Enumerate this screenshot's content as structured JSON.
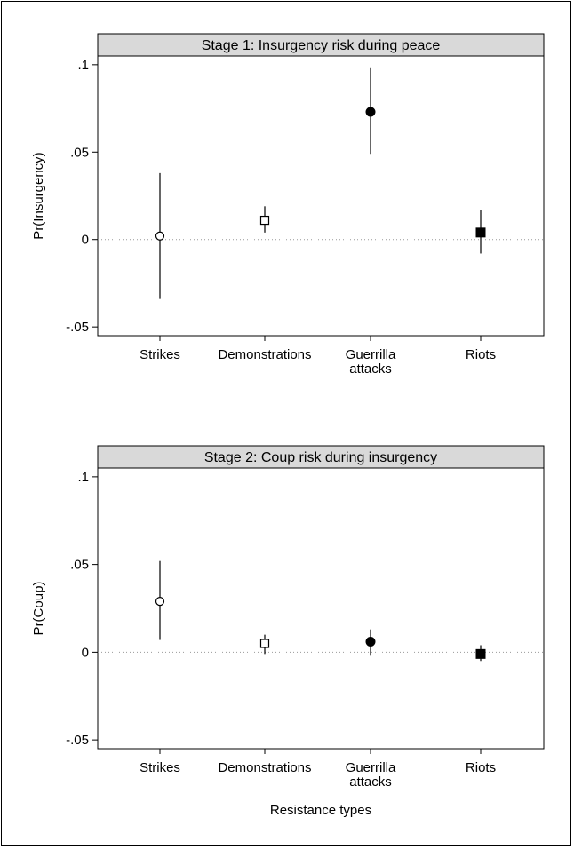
{
  "xlabel": "Resistance types",
  "chart_data": [
    {
      "type": "scatter",
      "title": "Stage 1: Insurgency risk during peace",
      "ylabel": "Pr(Insurgency)",
      "ylim": [
        -0.055,
        0.105
      ],
      "yticks": [
        ".1",
        ".05",
        "0",
        "-.05"
      ],
      "yticks_values": [
        0.1,
        0.05,
        0,
        -0.05
      ],
      "categories": [
        [
          "Strikes"
        ],
        [
          "Demonstrations"
        ],
        [
          "Guerrilla",
          "attacks"
        ],
        [
          "Riots"
        ]
      ],
      "points": [
        {
          "estimate": 0.002,
          "ci_low": -0.034,
          "ci_high": 0.038,
          "marker": "circle-open"
        },
        {
          "estimate": 0.011,
          "ci_low": 0.004,
          "ci_high": 0.019,
          "marker": "square-open"
        },
        {
          "estimate": 0.073,
          "ci_low": 0.049,
          "ci_high": 0.098,
          "marker": "circle-filled"
        },
        {
          "estimate": 0.004,
          "ci_low": -0.008,
          "ci_high": 0.017,
          "marker": "square-filled"
        }
      ],
      "reference_line": 0,
      "grid": false
    },
    {
      "type": "scatter",
      "title": "Stage 2: Coup risk during insurgency",
      "ylabel": "Pr(Coup)",
      "ylim": [
        -0.055,
        0.105
      ],
      "yticks": [
        ".1",
        ".05",
        "0",
        "-.05"
      ],
      "yticks_values": [
        0.1,
        0.05,
        0,
        -0.05
      ],
      "categories": [
        [
          "Strikes"
        ],
        [
          "Demonstrations"
        ],
        [
          "Guerrilla",
          "attacks"
        ],
        [
          "Riots"
        ]
      ],
      "points": [
        {
          "estimate": 0.029,
          "ci_low": 0.007,
          "ci_high": 0.052,
          "marker": "circle-open"
        },
        {
          "estimate": 0.005,
          "ci_low": -0.001,
          "ci_high": 0.01,
          "marker": "square-open"
        },
        {
          "estimate": 0.006,
          "ci_low": -0.002,
          "ci_high": 0.013,
          "marker": "circle-filled"
        },
        {
          "estimate": -0.001,
          "ci_low": -0.005,
          "ci_high": 0.004,
          "marker": "square-filled"
        }
      ],
      "reference_line": 0,
      "grid": false
    }
  ]
}
